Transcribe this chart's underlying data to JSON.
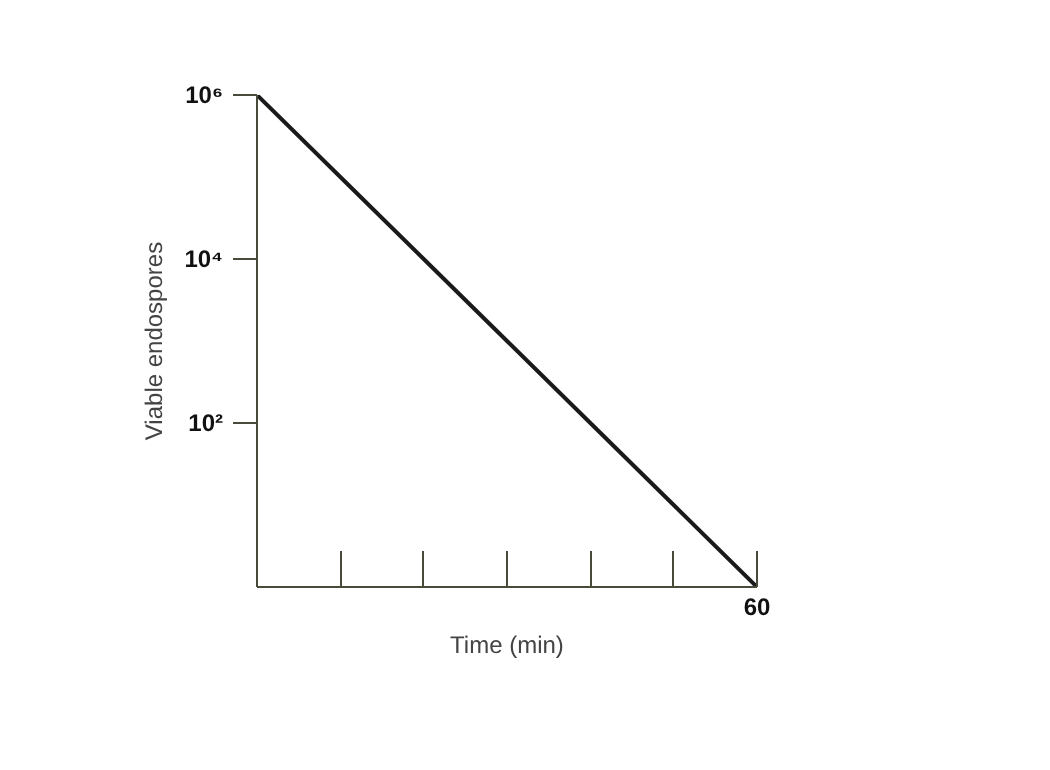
{
  "chart_data": {
    "type": "line",
    "xlabel": "Time (min)",
    "ylabel": "Viable endospores",
    "log": "y",
    "categories": [
      null,
      null,
      null,
      null,
      null,
      null,
      "60"
    ],
    "series": [
      {
        "color": "#1a1a1a",
        "values": [
          1000000,
          100000,
          10000,
          1000,
          100,
          10,
          1
        ]
      }
    ],
    "ylim": [
      1,
      1000000
    ],
    "yticks": [
      {
        "value": 100,
        "label": "10²"
      },
      {
        "value": 10000,
        "label": "10⁴"
      },
      {
        "value": 1000000,
        "label": "10⁶"
      }
    ],
    "grid": false,
    "marker": "none",
    "line_style": "solid"
  }
}
